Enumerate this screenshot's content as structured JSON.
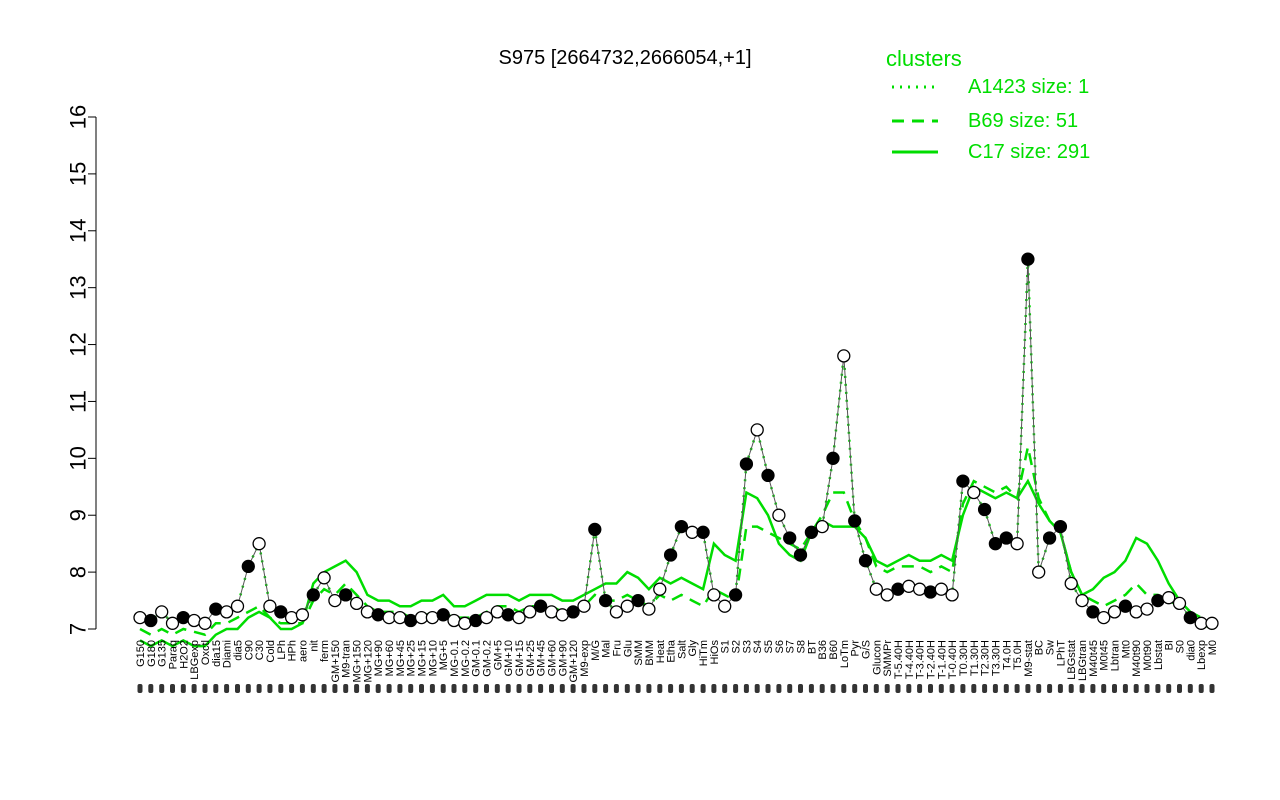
{
  "chart_data": {
    "type": "line",
    "title": "S975 [2664732,2666054,+1]",
    "xlabel": "",
    "ylabel": "",
    "ylim": [
      7,
      16
    ],
    "yticks": [
      7,
      8,
      9,
      10,
      11,
      12,
      13,
      14,
      15,
      16
    ],
    "xtick_labels": [
      "G150",
      "G180",
      "G135",
      "Paraq",
      "H2O2",
      "LBGexp",
      "Oxctl",
      "dia15",
      "Diami",
      "dia5",
      "C90",
      "C30",
      "Cold",
      "LPh",
      "HPh",
      "aero",
      "nit",
      "ferm",
      "GM+150",
      "M9-tran",
      "MG+150",
      "MG+120",
      "MG+90",
      "MG+60",
      "MG+45",
      "MG+25",
      "MG+15",
      "MG+10",
      "MG+5",
      "MG-0.1",
      "MG-0.2",
      "GM-0.1",
      "GM-0.2",
      "GM+5",
      "GM+10",
      "GM+15",
      "GM+25",
      "GM+45",
      "GM+60",
      "GM+90",
      "GM+120",
      "M9-exp",
      "M/G",
      "Mal",
      "Fru",
      "Glu",
      "SMM",
      "BMM",
      "Heat",
      "Etha",
      "Salt",
      "Gly",
      "HiTm",
      "HiOs",
      "S1",
      "S2",
      "S3",
      "S4",
      "S5",
      "S6",
      "S7",
      "S8",
      "BT",
      "B36",
      "B60",
      "LoTm",
      "Pyr",
      "G/S",
      "Glucon",
      "SMMPr",
      "T-5.40H",
      "T-4.40H",
      "T-3.40H",
      "T-2.40H",
      "T-1.40H",
      "T-0.40H",
      "T0.30H",
      "T1.30H",
      "T2.30H",
      "T3.30H",
      "T4.0H",
      "T5.0H",
      "M9-stat",
      "BC",
      "Sw",
      "LPhT",
      "LBGstat",
      "LBGtran",
      "M40t45",
      "M0t45",
      "Lbtran",
      "Mt0",
      "M40t90",
      "M0t90",
      "Lbstat",
      "BI",
      "S0",
      "dia0",
      "Lbexp",
      "M0"
    ],
    "y_sample": [
      7.2,
      7.15,
      7.3,
      7.1,
      7.2,
      7.15,
      7.1,
      7.35,
      7.3,
      7.4,
      8.1,
      8.5,
      7.4,
      7.3,
      7.2,
      7.25,
      7.6,
      7.9,
      7.5,
      7.6,
      7.45,
      7.3,
      7.25,
      7.2,
      7.2,
      7.15,
      7.2,
      7.2,
      7.25,
      7.15,
      7.1,
      7.15,
      7.2,
      7.3,
      7.25,
      7.2,
      7.3,
      7.4,
      7.3,
      7.25,
      7.3,
      7.4,
      8.75,
      7.5,
      7.3,
      7.4,
      7.5,
      7.35,
      7.7,
      8.3,
      8.8,
      8.7,
      8.7,
      7.6,
      7.4,
      7.6,
      9.9,
      10.5,
      9.7,
      9.0,
      8.6,
      8.3,
      8.7,
      8.8,
      10.0,
      11.8,
      8.9,
      8.2,
      7.7,
      7.6,
      7.7,
      7.75,
      7.7,
      7.65,
      7.7,
      7.6,
      9.6,
      9.4,
      9.1,
      8.5,
      8.6,
      8.5,
      13.5,
      8.0,
      8.6,
      8.8,
      7.8,
      7.5,
      7.3,
      7.2,
      7.3,
      7.4,
      7.3,
      7.35,
      7.5,
      7.55,
      7.45,
      7.2,
      7.1,
      7.1
    ],
    "series": [
      {
        "name": "A1423 size: 1",
        "style": "dotted",
        "color": "#00dd00",
        "values": [
          7.2,
          7.15,
          7.3,
          7.1,
          7.2,
          7.15,
          7.1,
          7.35,
          7.3,
          7.4,
          8.1,
          8.5,
          7.4,
          7.3,
          7.2,
          7.25,
          7.6,
          7.9,
          7.5,
          7.6,
          7.45,
          7.3,
          7.25,
          7.2,
          7.2,
          7.15,
          7.2,
          7.2,
          7.25,
          7.15,
          7.1,
          7.15,
          7.2,
          7.3,
          7.25,
          7.2,
          7.3,
          7.4,
          7.3,
          7.25,
          7.3,
          7.4,
          8.75,
          7.5,
          7.3,
          7.4,
          7.5,
          7.35,
          7.7,
          8.3,
          8.8,
          8.7,
          8.7,
          7.6,
          7.4,
          7.6,
          9.9,
          10.5,
          9.7,
          9.0,
          8.6,
          8.3,
          8.7,
          8.8,
          10.0,
          11.8,
          8.9,
          8.2,
          7.7,
          7.6,
          7.7,
          7.75,
          7.7,
          7.65,
          7.7,
          7.6,
          9.6,
          9.4,
          9.1,
          8.5,
          8.6,
          8.5,
          13.5,
          8.0,
          8.6,
          8.8,
          7.8,
          7.5,
          7.3,
          7.2,
          7.3,
          7.4,
          7.3,
          7.35,
          7.5,
          7.55,
          7.45,
          7.2,
          7.1,
          7.1
        ]
      },
      {
        "name": "B69 size: 51",
        "style": "dashed",
        "color": "#00dd00",
        "values": [
          7.0,
          6.9,
          7.0,
          6.9,
          7.0,
          6.95,
          6.9,
          7.1,
          7.1,
          7.2,
          7.3,
          7.4,
          7.2,
          7.1,
          7.1,
          7.1,
          7.5,
          7.7,
          7.6,
          7.8,
          7.6,
          7.4,
          7.3,
          7.3,
          7.3,
          7.2,
          7.2,
          7.3,
          7.3,
          7.2,
          7.2,
          7.2,
          7.3,
          7.4,
          7.4,
          7.3,
          7.4,
          7.4,
          7.4,
          7.3,
          7.3,
          7.4,
          7.6,
          7.5,
          7.5,
          7.6,
          7.5,
          7.4,
          7.6,
          7.5,
          7.6,
          7.5,
          7.4,
          7.7,
          7.6,
          7.5,
          8.8,
          8.8,
          8.7,
          8.6,
          8.5,
          8.4,
          8.7,
          9.0,
          9.4,
          9.4,
          8.9,
          8.6,
          8.1,
          8.0,
          8.1,
          8.1,
          8.1,
          8.0,
          8.1,
          8.0,
          9.2,
          9.6,
          9.5,
          9.4,
          9.5,
          9.3,
          10.2,
          9.3,
          8.9,
          8.7,
          8.0,
          7.6,
          7.5,
          7.4,
          7.5,
          7.6,
          7.8,
          7.6,
          7.6,
          7.5,
          7.4,
          7.3,
          7.2,
          7.1
        ]
      },
      {
        "name": "C17 size: 291",
        "style": "solid",
        "color": "#00dd00",
        "values": [
          6.8,
          6.7,
          6.8,
          6.7,
          6.8,
          6.7,
          6.7,
          6.9,
          7.0,
          7.0,
          7.2,
          7.3,
          7.2,
          7.0,
          7.0,
          7.1,
          7.8,
          8.0,
          8.1,
          8.2,
          8.0,
          7.6,
          7.5,
          7.5,
          7.4,
          7.4,
          7.5,
          7.5,
          7.6,
          7.4,
          7.4,
          7.5,
          7.6,
          7.6,
          7.6,
          7.5,
          7.6,
          7.6,
          7.6,
          7.5,
          7.5,
          7.6,
          7.7,
          7.8,
          7.8,
          8.0,
          7.9,
          7.7,
          7.9,
          7.8,
          7.9,
          7.8,
          7.7,
          8.5,
          8.3,
          8.2,
          9.4,
          9.3,
          9.0,
          8.5,
          8.3,
          8.2,
          8.7,
          8.9,
          8.8,
          8.8,
          8.8,
          8.6,
          8.2,
          8.1,
          8.2,
          8.3,
          8.2,
          8.2,
          8.3,
          8.2,
          9.0,
          9.5,
          9.4,
          9.3,
          9.4,
          9.3,
          9.6,
          9.2,
          8.9,
          8.7,
          8.0,
          7.6,
          7.7,
          7.9,
          8.0,
          8.2,
          8.6,
          8.5,
          8.2,
          7.8,
          7.5,
          7.3,
          7.1,
          7.0
        ]
      }
    ],
    "legend": {
      "title": "clusters",
      "position": "top-right",
      "entries": [
        {
          "label": "A1423 size: 1",
          "style": "dotted"
        },
        {
          "label": "B69 size: 51",
          "style": "dashed"
        },
        {
          "label": "C17 size: 291",
          "style": "solid"
        }
      ]
    },
    "point_fill": {
      "open": "#ffffff",
      "filled": "#000000"
    },
    "grid": false
  }
}
